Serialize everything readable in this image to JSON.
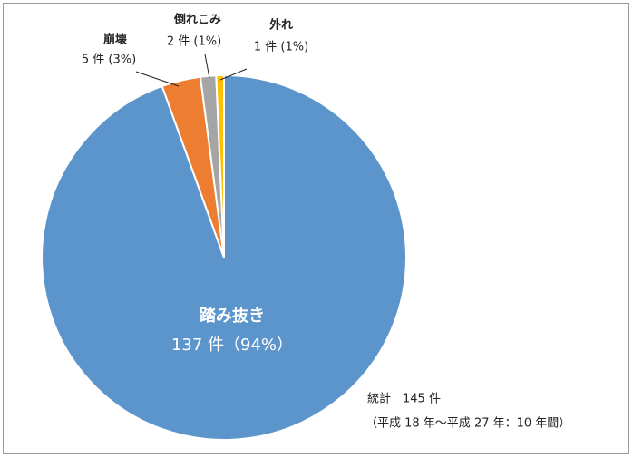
{
  "chart_data": {
    "type": "pie",
    "categories": [
      "踏み抜き",
      "崩壊",
      "倒れこみ",
      "外れ"
    ],
    "values": [
      137,
      5,
      2,
      1
    ],
    "value_labels": [
      "137 件（94%）",
      "5 件 (3%)",
      "2 件 (1%)",
      "1 件 (1%)"
    ],
    "colors": [
      "#5b95cb",
      "#ed7d31",
      "#a5a5a5",
      "#ffc000"
    ],
    "annotations": [
      "統計　145 件",
      "（平成 18 年～平成 27 年：10 年間）"
    ]
  }
}
